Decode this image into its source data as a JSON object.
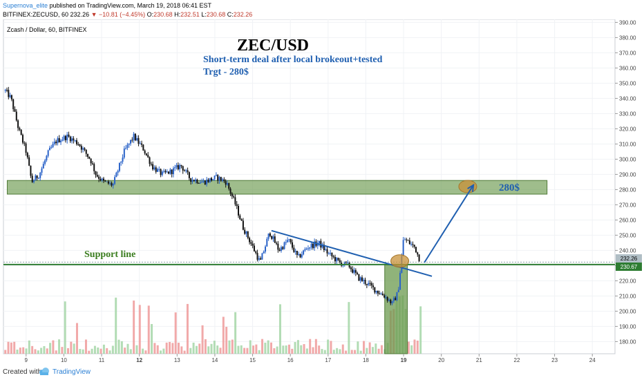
{
  "header": {
    "author": "Supernova_elite",
    "published": "published on TradingView.com, March 19, 2018 06:41 EST",
    "symbol": "BITFINEX:ZECUSD, 60",
    "last": "232.26",
    "change": "−10.81 (−4.45%)",
    "ohlc_o_label": "O:",
    "ohlc_o": "230.68",
    "ohlc_h_label": "H:",
    "ohlc_h": "232.51",
    "ohlc_l_label": "L:",
    "ohlc_l": "230.68",
    "ohlc_c_label": "C:",
    "ohlc_c": "232.26"
  },
  "chart": {
    "series_label": "Zcash / Dollar, 60, BITFINEX",
    "price_tag": "232.26",
    "support_tag": "230.67"
  },
  "annotations": {
    "title": "ZEC/USD",
    "note1": "Short-term deal after local brokeout+tested",
    "note2": "Trgt - 280$",
    "target_label": "280$",
    "support_label": "Support line"
  },
  "colors": {
    "up": "#2962c8",
    "down": "#111111",
    "vol_up": "#a5d6a7",
    "vol_down": "#ef9a9a",
    "zone": "#6b9a4e",
    "support": "#2e7d32",
    "arrow": "#1f5fb0",
    "circle": "#c8913a",
    "annotation_text": "#1f5fb0",
    "support_text": "#3a7d1e"
  },
  "footer": {
    "created_with": "Created with",
    "brand": "TradingView"
  },
  "chart_data": {
    "type": "candlestick",
    "title": "ZEC/USD",
    "x_ticks": [
      "9",
      "10",
      "11",
      "12",
      "13",
      "14",
      "15",
      "16",
      "17",
      "18",
      "19",
      "20",
      "21",
      "22",
      "23",
      "24"
    ],
    "y_ticks": [
      180,
      190,
      200,
      210,
      220,
      230,
      240,
      250,
      260,
      270,
      280,
      290,
      300,
      310,
      320,
      330,
      340,
      350,
      360,
      370,
      380,
      390
    ],
    "y_range": [
      172,
      392
    ],
    "x_range": [
      8.4,
      24.6
    ],
    "price_path": [
      [
        8.45,
        345
      ],
      [
        8.6,
        340
      ],
      [
        8.8,
        320
      ],
      [
        9.0,
        305
      ],
      [
        9.15,
        285
      ],
      [
        9.35,
        290
      ],
      [
        9.6,
        305
      ],
      [
        9.8,
        312
      ],
      [
        10.1,
        315
      ],
      [
        10.4,
        310
      ],
      [
        10.7,
        300
      ],
      [
        10.85,
        290
      ],
      [
        11.05,
        285
      ],
      [
        11.3,
        283
      ],
      [
        11.6,
        305
      ],
      [
        11.85,
        315
      ],
      [
        12.1,
        307
      ],
      [
        12.35,
        295
      ],
      [
        12.6,
        290
      ],
      [
        12.85,
        292
      ],
      [
        13.1,
        296
      ],
      [
        13.35,
        287
      ],
      [
        13.7,
        285
      ],
      [
        14.05,
        288
      ],
      [
        14.3,
        285
      ],
      [
        14.55,
        270
      ],
      [
        14.75,
        255
      ],
      [
        14.95,
        245
      ],
      [
        15.2,
        232
      ],
      [
        15.45,
        252
      ],
      [
        15.7,
        240
      ],
      [
        15.95,
        247
      ],
      [
        16.2,
        235
      ],
      [
        16.45,
        242
      ],
      [
        16.75,
        245
      ],
      [
        17.0,
        238
      ],
      [
        17.3,
        232
      ],
      [
        17.55,
        230
      ],
      [
        17.8,
        222
      ],
      [
        18.05,
        218
      ],
      [
        18.3,
        213
      ],
      [
        18.5,
        210
      ],
      [
        18.7,
        205
      ],
      [
        18.85,
        212
      ],
      [
        19.0,
        248
      ],
      [
        19.15,
        245
      ],
      [
        19.3,
        242
      ],
      [
        19.45,
        232.26
      ]
    ],
    "volume_bars": 140,
    "resistance_zone": [
      277,
      286
    ],
    "resistance_zone_x": [
      8.5,
      22.8
    ],
    "support_level": 230.67,
    "support_x": [
      8.4,
      24.6
    ],
    "downtrend_line": [
      [
        15.5,
        253
      ],
      [
        19.75,
        223
      ]
    ],
    "breakout_zone": {
      "x": [
        18.5,
        19.1
      ],
      "y": [
        172,
        230.67
      ]
    },
    "target_arrow": {
      "from": [
        19.55,
        232
      ],
      "to": [
        20.85,
        283
      ]
    },
    "highlight_circles": [
      [
        18.9,
        233
      ],
      [
        20.7,
        282
      ]
    ]
  }
}
